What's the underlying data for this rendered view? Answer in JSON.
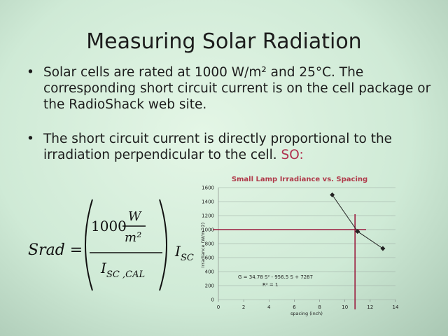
{
  "slide": {
    "title": "Measuring Solar Radiation",
    "bullets": [
      "Solar cells are rated at 1000 W/m² and 25°C.  The corresponding short circuit current is on the cell package or the RadioShack web site.",
      "The short circuit current is directly proportional to the irradiation perpendicular to the cell."
    ],
    "emphasis": "SO:"
  },
  "formula": {
    "lhs": "Srad =",
    "numerator": "1000",
    "unit_top": "W",
    "unit_bottom": "m²",
    "denominator": {
      "symbol": "I",
      "subscript": "SC ,CAL"
    },
    "factor": {
      "symbol": "I",
      "subscript": "SC"
    }
  },
  "chart_data": {
    "type": "line",
    "title": "Small Lamp Irradiance vs. Spacing",
    "x_label": "spacing (inch)",
    "y_label": "Irradiance (W/m^2)",
    "x": [
      9,
      11,
      13
    ],
    "series": [
      {
        "color": "#222222",
        "values": [
          1496,
          974,
          730
        ]
      }
    ],
    "xlim": [
      0,
      14
    ],
    "xticks": [
      0,
      2,
      4,
      6,
      8,
      10,
      12,
      14
    ],
    "ylim": [
      0,
      1600
    ],
    "yticks": [
      0,
      200,
      400,
      600,
      800,
      1000,
      1200,
      1400,
      1600
    ],
    "grid": true,
    "reference_lines": {
      "x": 10.8,
      "y": 1000,
      "color": "#9b1b3e"
    },
    "annotations": [
      "G = 34.78 S² - 956.5 S + 7287",
      "R² = 1"
    ]
  }
}
